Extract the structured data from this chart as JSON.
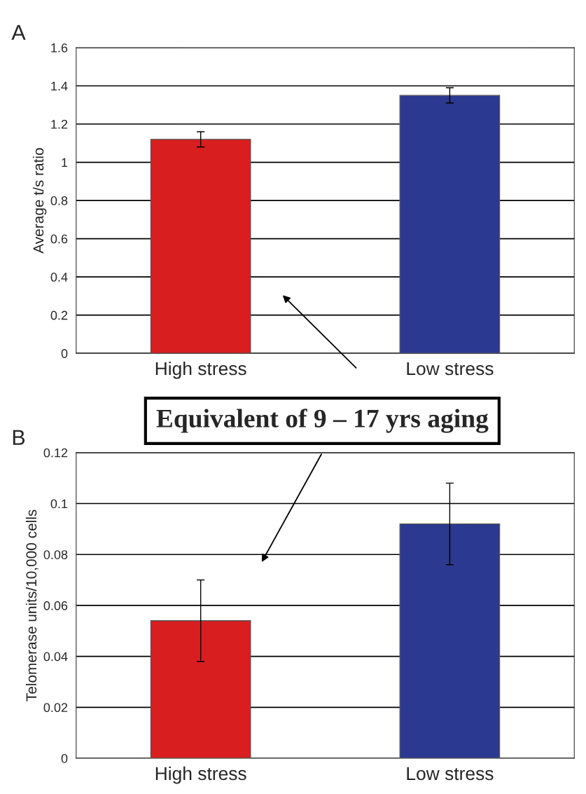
{
  "chart_data": [
    {
      "type": "bar",
      "title": "A",
      "ylabel": "Average t/s ratio",
      "categories": [
        "High stress",
        "Low stress"
      ],
      "values": [
        1.12,
        1.35
      ],
      "errors": [
        0.04,
        0.04
      ],
      "colors": [
        "#d81e1e",
        "#2b3990"
      ],
      "ylim": [
        0,
        1.6
      ],
      "yticks": [
        0,
        0.2,
        0.4,
        0.6,
        0.8,
        1,
        1.2,
        1.4,
        1.6
      ],
      "grid": "y",
      "annotations": [
        "Equivalent of 9 – 17 yrs aging"
      ]
    },
    {
      "type": "bar",
      "title": "B",
      "ylabel": "Telomerase units/10,000 cells",
      "categories": [
        "High stress",
        "Low stress"
      ],
      "values": [
        0.054,
        0.092
      ],
      "errors": [
        0.016,
        0.016
      ],
      "colors": [
        "#d81e1e",
        "#2b3990"
      ],
      "ylim": [
        0,
        0.12
      ],
      "yticks": [
        0,
        0.02,
        0.04,
        0.06,
        0.08,
        0.1,
        0.12
      ],
      "grid": "y"
    }
  ]
}
